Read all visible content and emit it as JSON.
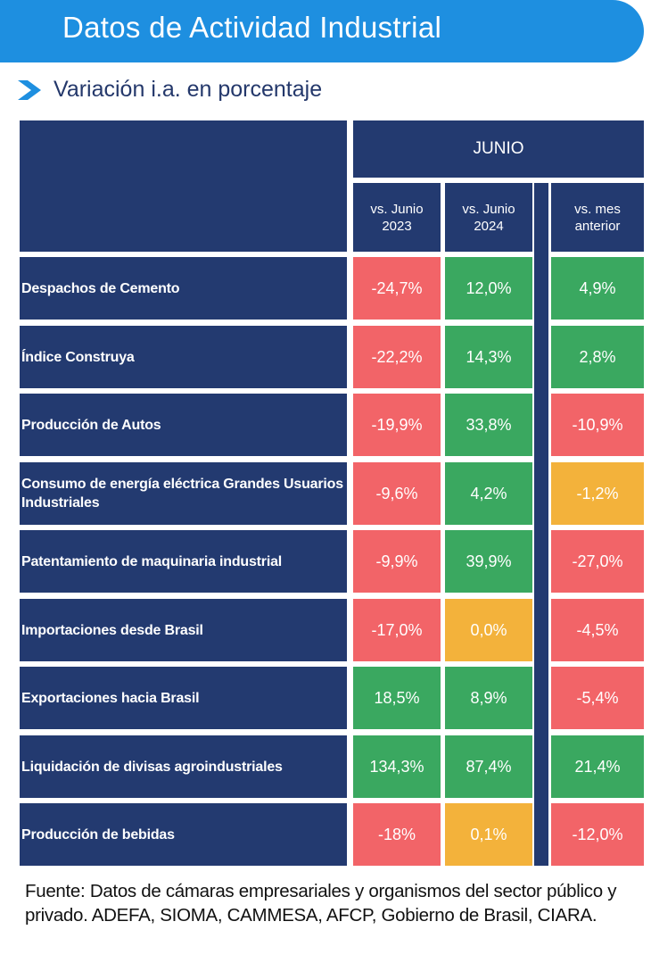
{
  "header": {
    "title": "Datos de Actividad Industrial",
    "subtitle": "Variación i.a. en porcentaje"
  },
  "chart_data": {
    "type": "table",
    "group_header": "JUNIO",
    "columns": [
      "vs. Junio 2023",
      "vs. Junio 2024",
      "vs. mes anterior"
    ],
    "rows": [
      {
        "label": "Despachos de Cemento",
        "values": [
          "-24,7%",
          "12,0%",
          "4,9%"
        ],
        "status": [
          "neg",
          "pos",
          "pos"
        ]
      },
      {
        "label": "Índice Construya",
        "values": [
          "-22,2%",
          "14,3%",
          "2,8%"
        ],
        "status": [
          "neg",
          "pos",
          "pos"
        ]
      },
      {
        "label": "Producción de Autos",
        "values": [
          "-19,9%",
          "33,8%",
          "-10,9%"
        ],
        "status": [
          "neg",
          "pos",
          "neg"
        ]
      },
      {
        "label": "Consumo de energía eléctrica Grandes Usuarios Industriales",
        "values": [
          "-9,6%",
          "4,2%",
          "-1,2%"
        ],
        "status": [
          "neg",
          "pos",
          "neutral"
        ]
      },
      {
        "label": "Patentamiento de maquinaria industrial",
        "values": [
          "-9,9%",
          "39,9%",
          "-27,0%"
        ],
        "status": [
          "neg",
          "pos",
          "neg"
        ]
      },
      {
        "label": "Importaciones desde Brasil",
        "values": [
          "-17,0%",
          "0,0%",
          "-4,5%"
        ],
        "status": [
          "neg",
          "neutral",
          "neg"
        ]
      },
      {
        "label": "Exportaciones hacia Brasil",
        "values": [
          "18,5%",
          "8,9%",
          "-5,4%"
        ],
        "status": [
          "pos",
          "pos",
          "neg"
        ]
      },
      {
        "label": "Liquidación de divisas agroindustriales",
        "values": [
          "134,3%",
          "87,4%",
          "21,4%"
        ],
        "status": [
          "pos",
          "pos",
          "pos"
        ]
      },
      {
        "label": "Producción de bebidas",
        "values": [
          "-18%",
          "0,1%",
          "-12,0%"
        ],
        "status": [
          "neg",
          "neutral",
          "neg"
        ]
      }
    ]
  },
  "colors": {
    "banner": "#1e8fe0",
    "navy": "#233a70",
    "positive": "#3aa860",
    "negative": "#f26468",
    "neutral": "#f3b23b"
  },
  "footer": {
    "source": "Fuente: Datos de cámaras empresariales y organismos del sector público y privado. ADEFA, SIOMA, CAMMESA, AFCP, Gobierno de Brasil, CIARA."
  }
}
